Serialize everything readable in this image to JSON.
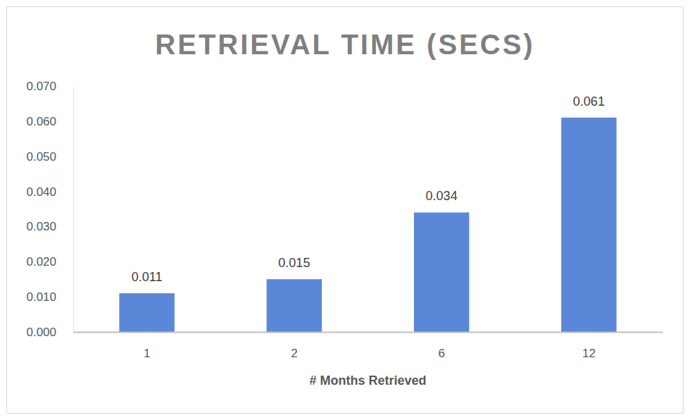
{
  "chart_data": {
    "type": "bar",
    "title": "RETRIEVAL TIME (SECS)",
    "x_label": "# Months Retrieved",
    "categories": [
      "1",
      "2",
      "6",
      "12"
    ],
    "values": [
      0.011,
      0.015,
      0.034,
      0.061
    ],
    "color": "#5b87d8",
    "ylim": [
      0,
      0.07
    ],
    "yticks": [
      {
        "value": 0,
        "label": "0.000"
      },
      {
        "value": 0.01,
        "label": "0.010"
      },
      {
        "value": 0.02,
        "label": "0.020"
      },
      {
        "value": 0.03,
        "label": "0.030"
      },
      {
        "value": 0.04,
        "label": "0.040"
      },
      {
        "value": 0.05,
        "label": "0.050"
      },
      {
        "value": 0.06,
        "label": "0.060"
      },
      {
        "value": 0.07,
        "label": "0.070"
      }
    ],
    "grid": false,
    "data_labels": true
  }
}
